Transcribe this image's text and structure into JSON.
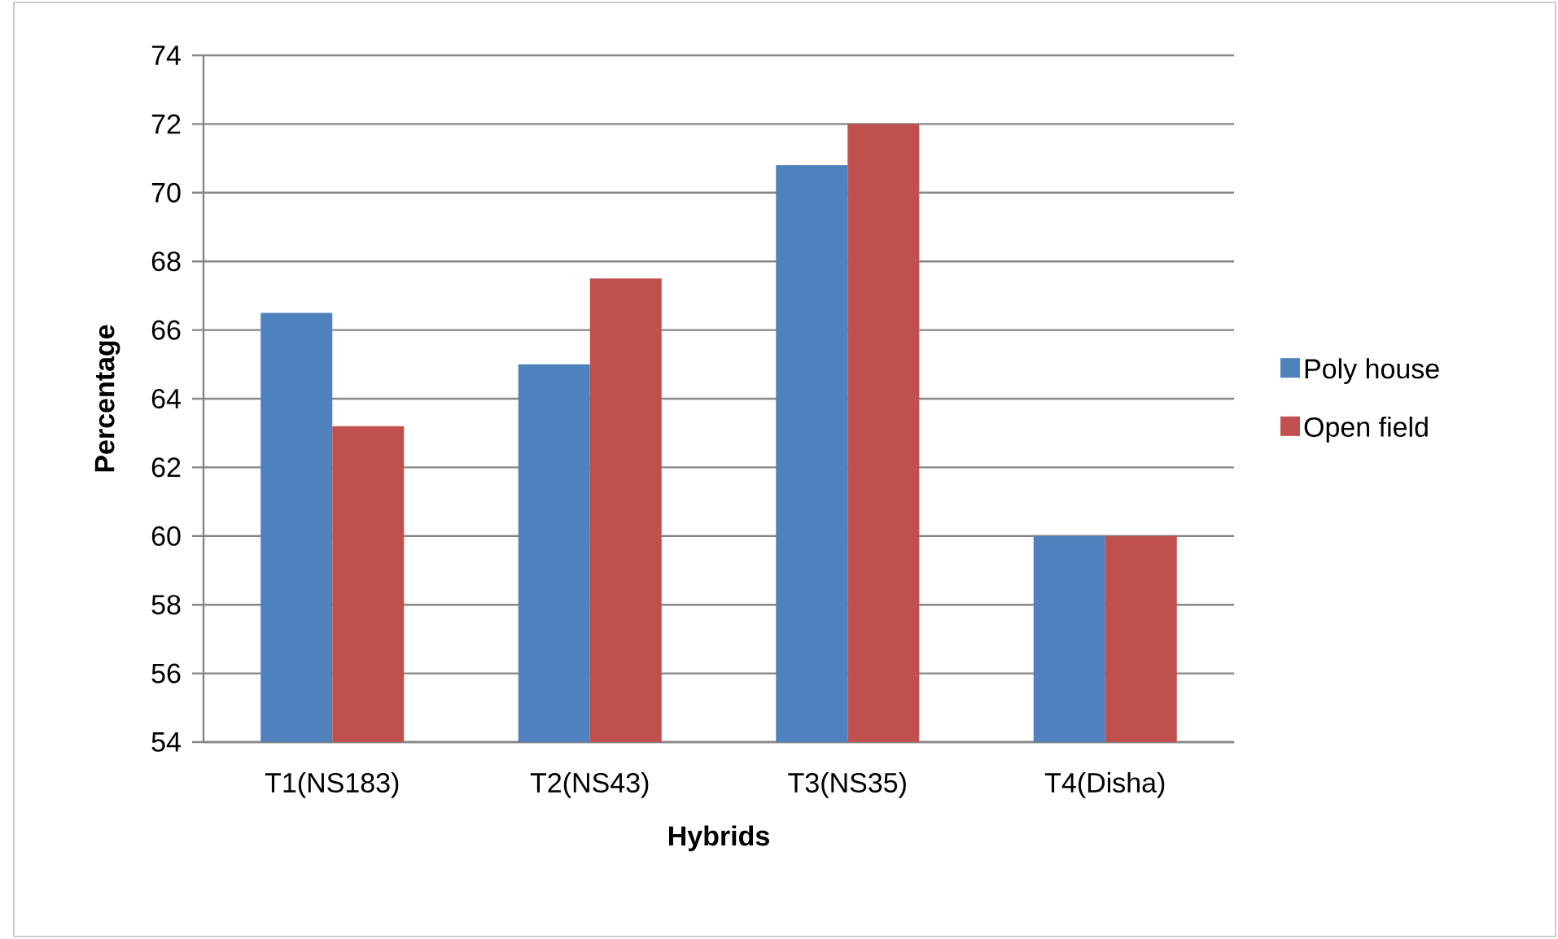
{
  "chart_data": {
    "type": "bar",
    "xlabel": "Hybrids",
    "ylabel": "Percentage",
    "categories": [
      "T1(NS183)",
      "T2(NS43)",
      "T3(NS35)",
      "T4(Disha)"
    ],
    "series": [
      {
        "name": "Poly house",
        "color": "#4f81bd",
        "values": [
          66.5,
          65.0,
          70.8,
          60.0
        ]
      },
      {
        "name": "Open field",
        "color": "#c0504d",
        "values": [
          63.2,
          67.5,
          72.0,
          60.0
        ]
      }
    ],
    "ylim": [
      54,
      74
    ],
    "yticks": [
      54,
      56,
      58,
      60,
      62,
      64,
      66,
      68,
      70,
      72,
      74
    ],
    "grid": "y",
    "legend": "right"
  }
}
